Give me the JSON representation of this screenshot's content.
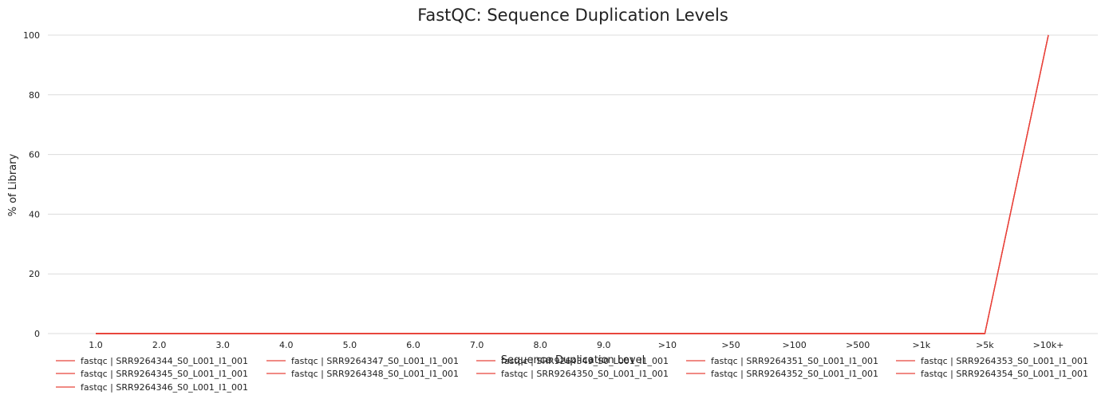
{
  "chart_data": {
    "type": "line",
    "title": "FastQC: Sequence Duplication Levels",
    "xlabel": "Sequence Duplication Level",
    "ylabel": "% of Library",
    "categories": [
      "1.0",
      "2.0",
      "3.0",
      "4.0",
      "5.0",
      "6.0",
      "7.0",
      "8.0",
      "9.0",
      ">10",
      ">50",
      ">100",
      ">500",
      ">1k",
      ">5k",
      ">10k+"
    ],
    "yticks": [
      0,
      20,
      40,
      60,
      80,
      100
    ],
    "ylim": [
      0,
      100
    ],
    "grid": true,
    "legend_position": "bottom",
    "line_color": "#e8433b",
    "series": [
      {
        "name": "fastqc | SRR9264344_S0_L001_I1_001",
        "values": [
          0,
          0,
          0,
          0,
          0,
          0,
          0,
          0,
          0,
          0,
          0,
          0,
          0,
          0,
          0,
          100
        ]
      },
      {
        "name": "fastqc | SRR9264345_S0_L001_I1_001",
        "values": [
          0,
          0,
          0,
          0,
          0,
          0,
          0,
          0,
          0,
          0,
          0,
          0,
          0,
          0,
          0,
          100
        ]
      },
      {
        "name": "fastqc | SRR9264346_S0_L001_I1_001",
        "values": [
          0,
          0,
          0,
          0,
          0,
          0,
          0,
          0,
          0,
          0,
          0,
          0,
          0,
          0,
          0,
          100
        ]
      },
      {
        "name": "fastqc | SRR9264347_S0_L001_I1_001",
        "values": [
          0,
          0,
          0,
          0,
          0,
          0,
          0,
          0,
          0,
          0,
          0,
          0,
          0,
          0,
          0,
          100
        ]
      },
      {
        "name": "fastqc | SRR9264348_S0_L001_I1_001",
        "values": [
          0,
          0,
          0,
          0,
          0,
          0,
          0,
          0,
          0,
          0,
          0,
          0,
          0,
          0,
          0,
          100
        ]
      },
      {
        "name": "fastqc | SRR9264349_S0_L001_I1_001",
        "values": [
          0,
          0,
          0,
          0,
          0,
          0,
          0,
          0,
          0,
          0,
          0,
          0,
          0,
          0,
          0,
          100
        ]
      },
      {
        "name": "fastqc | SRR9264350_S0_L001_I1_001",
        "values": [
          0,
          0,
          0,
          0,
          0,
          0,
          0,
          0,
          0,
          0,
          0,
          0,
          0,
          0,
          0,
          100
        ]
      },
      {
        "name": "fastqc | SRR9264351_S0_L001_I1_001",
        "values": [
          0,
          0,
          0,
          0,
          0,
          0,
          0,
          0,
          0,
          0,
          0,
          0,
          0,
          0,
          0,
          100
        ]
      },
      {
        "name": "fastqc | SRR9264352_S0_L001_I1_001",
        "values": [
          0,
          0,
          0,
          0,
          0,
          0,
          0,
          0,
          0,
          0,
          0,
          0,
          0,
          0,
          0,
          100
        ]
      },
      {
        "name": "fastqc | SRR9264353_S0_L001_I1_001",
        "values": [
          0,
          0,
          0,
          0,
          0,
          0,
          0,
          0,
          0,
          0,
          0,
          0,
          0,
          0,
          0,
          100
        ]
      },
      {
        "name": "fastqc | SRR9264354_S0_L001_I1_001",
        "values": [
          0,
          0,
          0,
          0,
          0,
          0,
          0,
          0,
          0,
          0,
          0,
          0,
          0,
          0,
          0,
          100
        ]
      }
    ]
  }
}
